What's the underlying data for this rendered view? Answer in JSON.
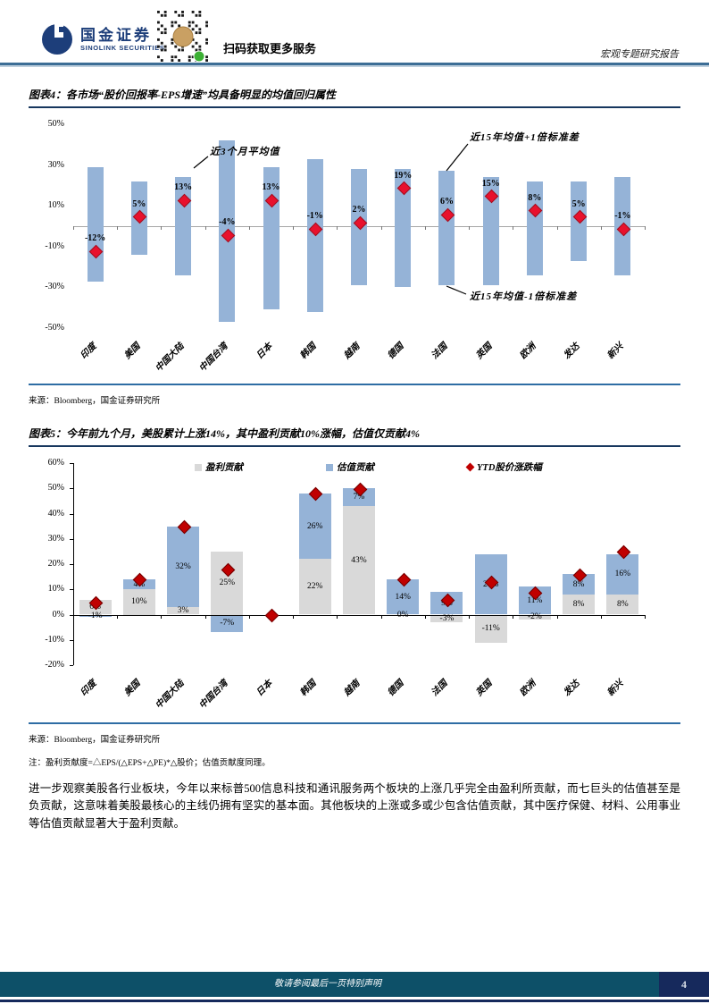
{
  "header": {
    "logo_cn": "国金证券",
    "logo_en": "SINOLINK SECURITIES",
    "qr_caption": "扫码获取更多服务",
    "report_type": "宏观专题研究报告"
  },
  "figure4": {
    "title": "图表4：各市场“股价回报率-EPS增速”均具备明显的均值回归属性",
    "source": "来源：Bloomberg，国金证券研究所"
  },
  "figure5": {
    "title": "图表5：今年前九个月，美股累计上涨14%，其中盈利贡献10%涨幅，估值仅贡献4%",
    "source": "来源：Bloomberg，国金证券研究所",
    "note": "注：盈利贡献度=△EPS/(△EPS+△PE)*△股价；估值贡献度同理。"
  },
  "paragraph": "进一步观察美股各行业板块，今年以来标普500信息科技和通讯服务两个板块的上涨几乎完全由盈利所贡献，而七巨头的估值甚至是负贡献，这意味着美股最核心的主线仍拥有坚实的基本面。其他板块的上涨或多或少包含估值贡献，其中医疗保健、材料、公用事业等估值贡献显著大于盈利贡献。",
  "footer": {
    "disclaimer": "敬请参阅最后一页特别声明",
    "page": "4"
  },
  "colors": {
    "accent_navy": "#17375E",
    "rule_blue": "#2E6DA4",
    "bar_blue": "#95B3D7",
    "bar_gray": "#D9D9D9",
    "marker_red": "#E8112D",
    "marker_dark_red": "#C00000",
    "footer_bg": "#0D5068",
    "page_box_bg": "#16295C",
    "logo_navy": "#1D3E7A"
  },
  "chart_data": [
    {
      "type": "bar",
      "subtype": "floating-range-bar-with-marker",
      "categories": [
        "印度",
        "美国",
        "中国大陆",
        "中国台湾",
        "日本",
        "韩国",
        "越南",
        "德国",
        "法国",
        "英国",
        "欧洲",
        "发达",
        "新兴"
      ],
      "ylim": [
        -50,
        50
      ],
      "yticks": [
        50,
        30,
        10,
        -10,
        -30,
        -50
      ],
      "grid": false,
      "series": [
        {
          "name": "近15年均值+1倍标准差",
          "role": "range_high",
          "values": [
            29,
            22,
            24,
            42,
            29,
            33,
            28,
            28,
            27,
            24,
            22,
            22,
            24
          ]
        },
        {
          "name": "近15年均值-1倍标准差",
          "role": "range_low",
          "values": [
            -27,
            -14,
            -24,
            -47,
            -41,
            -42,
            -29,
            -30,
            -29,
            -29,
            -24,
            -17,
            -24
          ]
        },
        {
          "name": "近3个月平均值",
          "role": "marker",
          "values": [
            -12,
            5,
            13,
            -4,
            13,
            -1,
            2,
            19,
            6,
            15,
            8,
            5,
            -1
          ],
          "labels": [
            "-12%",
            "5%",
            "13%",
            "-4%",
            "13%",
            "-1%",
            "2%",
            "19%",
            "6%",
            "15%",
            "8%",
            "5%",
            "-1%"
          ]
        }
      ],
      "annotations": {
        "mean3m": "近3个月平均值",
        "upper": "近15年均值+1倍标准差",
        "lower": "近15年均值-1倍标准差"
      }
    },
    {
      "type": "bar",
      "subtype": "stacked-bar-with-marker",
      "categories": [
        "印度",
        "美国",
        "中国大陆",
        "中国台湾",
        "日本",
        "韩国",
        "越南",
        "德国",
        "法国",
        "英国",
        "欧洲",
        "发达",
        "新兴"
      ],
      "ylim": [
        -20,
        60
      ],
      "yticks": [
        60,
        50,
        40,
        30,
        20,
        10,
        0,
        -10,
        -20
      ],
      "grid": false,
      "legend": [
        "盈利贡献",
        "估值贡献",
        "YTD股价涨跌幅"
      ],
      "legend_position": "top",
      "series": [
        {
          "name": "盈利贡献",
          "role": "stack",
          "values": [
            6,
            10,
            3,
            25,
            0,
            22,
            43,
            0,
            -3,
            -11,
            -2,
            8,
            8
          ],
          "labels": [
            "6%",
            "10%",
            "3%",
            "25%",
            "",
            "22%",
            "43%",
            "0%",
            "-3%",
            "-11%",
            "-2%",
            "8%",
            "8%"
          ]
        },
        {
          "name": "估值贡献",
          "role": "stack",
          "values": [
            -1,
            4,
            32,
            -7,
            0,
            26,
            7,
            14,
            9,
            24,
            11,
            8,
            16
          ],
          "labels": [
            "-1%",
            "4%",
            "32%",
            "-7%",
            "",
            "26%",
            "7%",
            "14%",
            "9%",
            "24%",
            "11%",
            "8%",
            "16%"
          ]
        },
        {
          "name": "YTD股价涨跌幅",
          "role": "marker",
          "values": [
            5,
            14,
            35,
            18,
            0,
            48,
            50,
            14,
            6,
            13,
            9,
            16,
            25
          ]
        }
      ]
    }
  ]
}
